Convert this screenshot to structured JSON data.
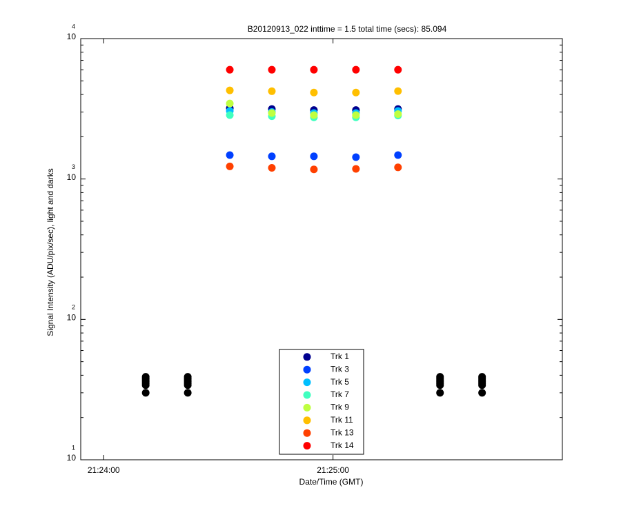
{
  "chart_data": {
    "type": "scatter",
    "title": "B20120913_022 inttime = 1.5 total time (secs): 85.094",
    "xlabel": "Date/Time (GMT)",
    "ylabel": "Signal Intensity (ADU/pix/sec), light and darks",
    "xlim": [
      "21:23:54",
      "21:26:00"
    ],
    "xticks": [
      "21:24:00",
      "21:25:00"
    ],
    "ylim": [
      10,
      10000
    ],
    "yscale": "log",
    "yticks": [
      {
        "value": 10,
        "label": "10",
        "exponent": "1"
      },
      {
        "value": 100,
        "label": "10",
        "exponent": "2"
      },
      {
        "value": 1000,
        "label": "10",
        "exponent": "3"
      },
      {
        "value": 10000,
        "label": "10",
        "exponent": "4"
      }
    ],
    "legend": "lower center",
    "series": [
      {
        "color": "#000000",
        "x": [
          "21:24:11",
          "21:24:11",
          "21:24:11",
          "21:24:11",
          "21:24:11",
          "21:24:11",
          "21:24:11",
          "21:24:22",
          "21:24:22",
          "21:24:22",
          "21:24:22",
          "21:24:22",
          "21:24:22",
          "21:24:22",
          "21:25:28",
          "21:25:28",
          "21:25:28",
          "21:25:28",
          "21:25:28",
          "21:25:28",
          "21:25:28",
          "21:25:39",
          "21:25:39",
          "21:25:39",
          "21:25:39",
          "21:25:39",
          "21:25:39",
          "21:25:39"
        ],
        "values": [
          30,
          34,
          35,
          36,
          37,
          38,
          39,
          30,
          34,
          35,
          36,
          37,
          38,
          39,
          30,
          34,
          35,
          36,
          37,
          38,
          39,
          30,
          34,
          35,
          36,
          37,
          38,
          39
        ]
      },
      {
        "name": "Trk 1",
        "color": "#00008f",
        "x": [
          "21:24:33",
          "21:24:44",
          "21:24:55",
          "21:25:06",
          "21:25:17"
        ],
        "values": [
          3190,
          3150,
          3100,
          3100,
          3150
        ]
      },
      {
        "name": "Trk 3",
        "color": "#0040ff",
        "x": [
          "21:24:33",
          "21:24:44",
          "21:24:55",
          "21:25:06",
          "21:25:17"
        ],
        "values": [
          1480,
          1450,
          1450,
          1430,
          1480
        ]
      },
      {
        "name": "Trk 5",
        "color": "#00bfff",
        "x": [
          "21:24:33",
          "21:24:44",
          "21:24:55",
          "21:25:06",
          "21:25:17"
        ],
        "values": [
          3050,
          3000,
          2950,
          2950,
          3050
        ]
      },
      {
        "name": "Trk 7",
        "color": "#40ffbf",
        "x": [
          "21:24:33",
          "21:24:44",
          "21:24:55",
          "21:25:06",
          "21:25:17"
        ],
        "values": [
          2850,
          2800,
          2750,
          2750,
          2830
        ]
      },
      {
        "name": "Trk 9",
        "color": "#bfff40",
        "x": [
          "21:24:33",
          "21:24:44",
          "21:24:55",
          "21:25:06",
          "21:25:17"
        ],
        "values": [
          3450,
          2950,
          2850,
          2850,
          2900
        ]
      },
      {
        "name": "Trk 11",
        "color": "#ffbf00",
        "x": [
          "21:24:33",
          "21:24:44",
          "21:24:55",
          "21:25:06",
          "21:25:17"
        ],
        "values": [
          4280,
          4220,
          4130,
          4130,
          4230
        ]
      },
      {
        "name": "Trk 13",
        "color": "#ff4000",
        "x": [
          "21:24:33",
          "21:24:44",
          "21:24:55",
          "21:25:06",
          "21:25:17"
        ],
        "values": [
          1230,
          1200,
          1170,
          1180,
          1210
        ]
      },
      {
        "name": "Trk 14",
        "color": "#ff0000",
        "x": [
          "21:24:33",
          "21:24:44",
          "21:24:55",
          "21:25:06",
          "21:25:17"
        ],
        "values": [
          6000,
          6000,
          6000,
          6000,
          6000
        ]
      }
    ]
  }
}
